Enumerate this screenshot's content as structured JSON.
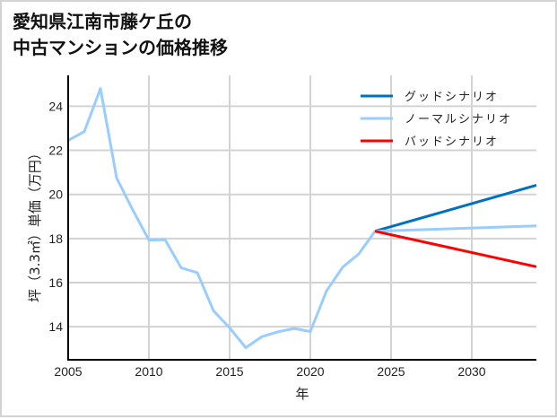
{
  "chart_data": {
    "type": "line",
    "title": "愛知県江南市藤ケ丘の\n中古マンションの価格推移",
    "title_lines": [
      "愛知県江南市藤ケ丘の",
      "中古マンションの価格推移"
    ],
    "xlabel": "年",
    "ylabel": "坪（3.3㎡）単価（万円）",
    "xlim": [
      2005,
      2034
    ],
    "ylim": [
      12.5,
      25.4
    ],
    "x_ticks": [
      2005,
      2010,
      2015,
      2020,
      2025,
      2030
    ],
    "y_ticks": [
      14,
      16,
      18,
      20,
      22,
      24
    ],
    "grid": true,
    "legend_position": "upper right",
    "colors": {
      "good": "#0070c0",
      "normal": "#99ccff",
      "bad": "#ff0000",
      "grid": "#d3d3d3",
      "axis": "#000000",
      "frame": "#d3d3d3"
    },
    "series": [
      {
        "name": "ノーマルシナリオ",
        "key": "history",
        "color": "#99ccff",
        "x": [
          2005,
          2006,
          2007,
          2008,
          2009,
          2010,
          2011,
          2012,
          2013,
          2014,
          2015,
          2016,
          2017,
          2018,
          2019,
          2020,
          2021,
          2022,
          2023,
          2024
        ],
        "values": [
          22.45,
          22.85,
          24.8,
          20.75,
          19.3,
          17.93,
          17.95,
          16.67,
          16.45,
          14.72,
          13.95,
          13.05,
          13.55,
          13.77,
          13.92,
          13.78,
          15.62,
          16.7,
          17.3,
          18.33
        ]
      },
      {
        "name": "グッドシナリオ",
        "key": "good",
        "color": "#0070c0",
        "x": [
          2024,
          2034
        ],
        "values": [
          18.33,
          20.42
        ]
      },
      {
        "name": "ノーマルシナリオ",
        "key": "normal",
        "color": "#99ccff",
        "x": [
          2024,
          2034
        ],
        "values": [
          18.33,
          18.57
        ]
      },
      {
        "name": "バッドシナリオ",
        "key": "bad",
        "color": "#ff0000",
        "x": [
          2024,
          2034
        ],
        "values": [
          18.33,
          16.72
        ]
      }
    ],
    "legend": [
      {
        "label": "グッドシナリオ",
        "color": "#0070c0"
      },
      {
        "label": "ノーマルシナリオ",
        "color": "#99ccff"
      },
      {
        "label": "バッドシナリオ",
        "color": "#ff0000"
      }
    ]
  }
}
